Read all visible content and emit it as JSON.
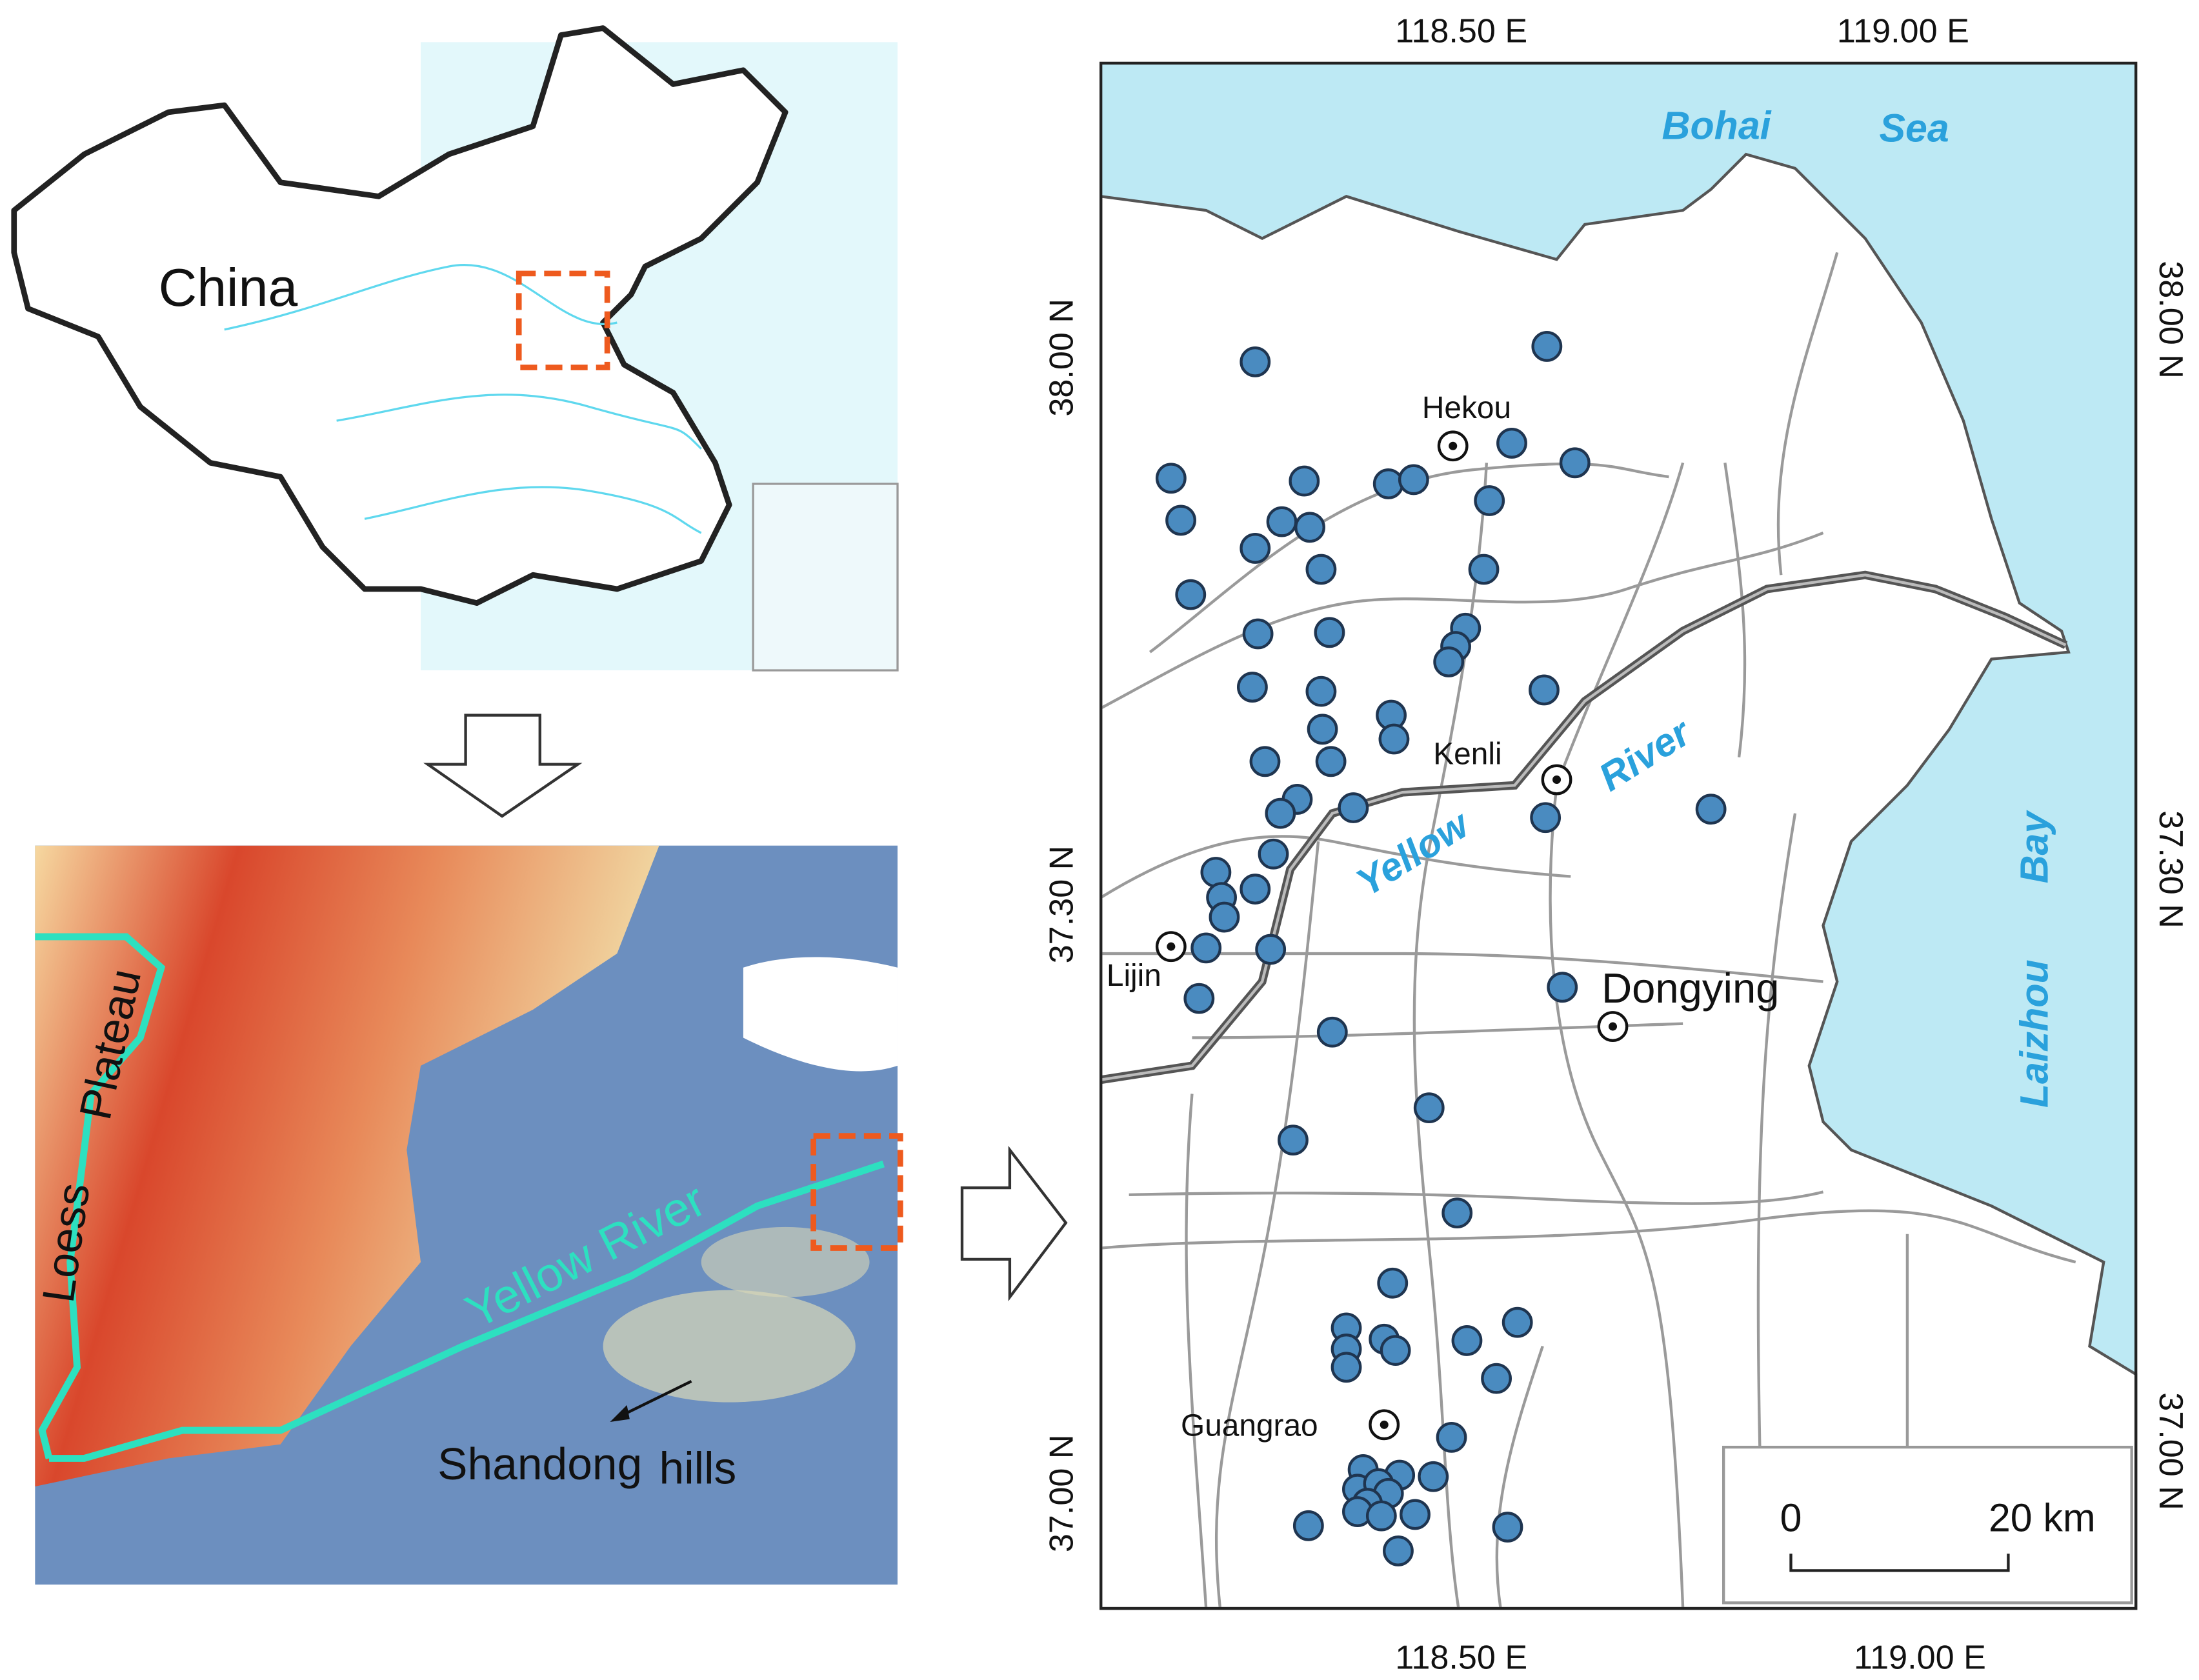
{
  "panel_china": {
    "label": "China"
  },
  "panel_dem": {
    "loess": "Loess",
    "plateau": "Plateau",
    "river": "Yellow River",
    "hills": [
      "Shandong",
      "hills"
    ]
  },
  "panel_study": {
    "top_ticks": [
      "118.50 E",
      "119.00 E"
    ],
    "bottom_ticks": [
      "118.50 E",
      "119.00 E"
    ],
    "left_ticks": [
      "38.00 N",
      "37.30 N",
      "37.00 N"
    ],
    "right_ticks": [
      "38.00 N",
      "37.30 N",
      "37.00 N"
    ],
    "sea": [
      "Bohai",
      "Sea"
    ],
    "bay": [
      "Laizhou",
      "Bay"
    ],
    "river": [
      "Yellow",
      "River"
    ],
    "places": [
      "Hekou",
      "Kenli",
      "Lijin",
      "Dongying",
      "Guangrao"
    ],
    "scale": [
      "0",
      "20 km"
    ]
  }
}
